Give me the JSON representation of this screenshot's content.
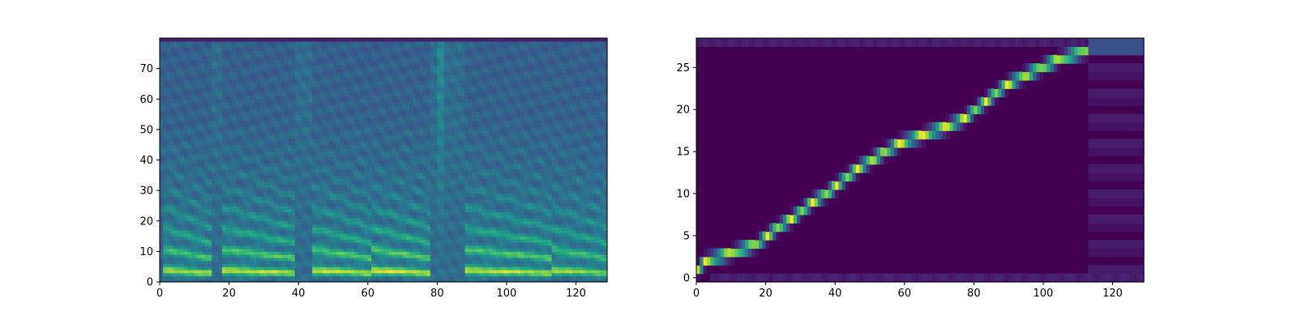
{
  "figure": {
    "background": "#ffffff",
    "colormap": "viridis"
  },
  "chart_data": [
    {
      "type": "heatmap",
      "title": "",
      "xlabel": "",
      "ylabel": "",
      "xlim": [
        0,
        129
      ],
      "ylim": [
        0,
        80
      ],
      "x_ticks": [
        0,
        20,
        40,
        60,
        80,
        100,
        120
      ],
      "y_ticks": [
        0,
        10,
        20,
        30,
        40,
        50,
        60,
        70
      ],
      "x_tick_labels": [
        "0",
        "20",
        "40",
        "60",
        "80",
        "100",
        "120"
      ],
      "y_tick_labels": [
        "0",
        "10",
        "20",
        "30",
        "40",
        "50",
        "60",
        "70"
      ],
      "grid": false,
      "color_scale": "viridis",
      "description_of_content": "mel-spectrogram",
      "segments": [
        {
          "x_start": 1,
          "x_end": 14,
          "intensity": 0.75
        },
        {
          "x_start": 18,
          "x_end": 38,
          "intensity": 0.8
        },
        {
          "x_start": 44,
          "x_end": 60,
          "intensity": 0.8
        },
        {
          "x_start": 61,
          "x_end": 77,
          "intensity": 0.85
        },
        {
          "x_start": 88,
          "x_end": 112,
          "intensity": 0.8
        },
        {
          "x_start": 113,
          "x_end": 128,
          "intensity": 0.7
        }
      ],
      "silences": [
        {
          "x_start": 15,
          "x_end": 17
        },
        {
          "x_start": 39,
          "x_end": 43
        },
        {
          "x_start": 78,
          "x_end": 87
        }
      ]
    },
    {
      "type": "heatmap",
      "title": "",
      "xlabel": "",
      "ylabel": "",
      "xlim": [
        0,
        129
      ],
      "ylim": [
        -0.5,
        28.5
      ],
      "x_ticks": [
        0,
        20,
        40,
        60,
        80,
        100,
        120
      ],
      "y_ticks": [
        0,
        5,
        10,
        15,
        20,
        25
      ],
      "x_tick_labels": [
        "0",
        "20",
        "40",
        "60",
        "80",
        "100",
        "120"
      ],
      "y_tick_labels": [
        "0",
        "5",
        "10",
        "15",
        "20",
        "25"
      ],
      "grid": false,
      "color_scale": "viridis",
      "alignment_path": [
        [
          0,
          1
        ],
        [
          2,
          2
        ],
        [
          10,
          3
        ],
        [
          17,
          4
        ],
        [
          20,
          5
        ],
        [
          23,
          6
        ],
        [
          27,
          7
        ],
        [
          30,
          8
        ],
        [
          33,
          9
        ],
        [
          37,
          10
        ],
        [
          40,
          11
        ],
        [
          43,
          12
        ],
        [
          46,
          13
        ],
        [
          50,
          14
        ],
        [
          54,
          15
        ],
        [
          58,
          16
        ],
        [
          65,
          17
        ],
        [
          72,
          18
        ],
        [
          77,
          19
        ],
        [
          80,
          20
        ],
        [
          83,
          21
        ],
        [
          86,
          22
        ],
        [
          89,
          23
        ],
        [
          94,
          24
        ],
        [
          99,
          25
        ],
        [
          104,
          26
        ],
        [
          112,
          27
        ]
      ]
    }
  ]
}
